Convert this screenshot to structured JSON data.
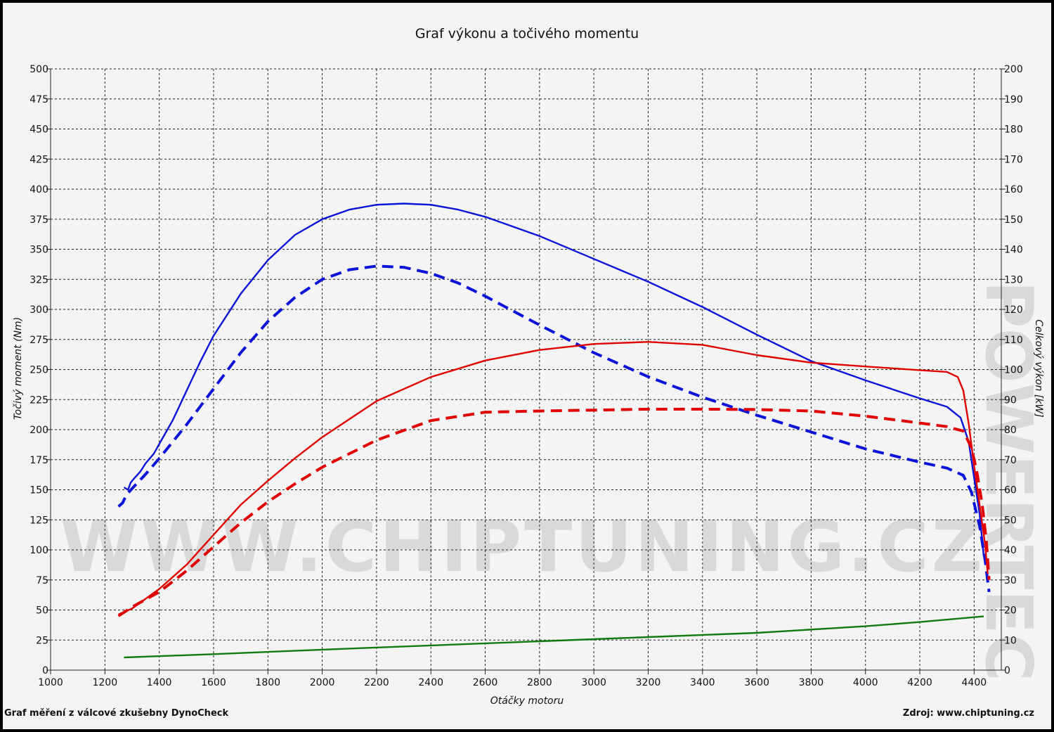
{
  "colors": {
    "background": "#f4f4f4",
    "grid": "#222222",
    "blue": "#0a14d8",
    "red": "#e00000",
    "green": "#117a11"
  },
  "watermark": {
    "text": "WWW.CHIPTUNING.CZ",
    "side_text": "POWERTEC"
  },
  "footer": {
    "left": "Graf měření z válcové zkušebny DynoCheck",
    "right": "Zdroj: www.chiptuning.cz"
  },
  "chart_data": {
    "type": "line",
    "title": "Graf výkonu a točivého momentu",
    "xlabel": "Otáčky motoru",
    "ylabel": "Točivý moment (Nm)",
    "y2label": "Celkový výkon [kW]",
    "xlim": [
      1000,
      4500
    ],
    "ylim": [
      0,
      500
    ],
    "y2lim": [
      0,
      200
    ],
    "grid": true,
    "x_ticks": [
      1000,
      1200,
      1400,
      1600,
      1800,
      2000,
      2200,
      2400,
      2600,
      2800,
      3000,
      3200,
      3400,
      3600,
      3800,
      4000,
      4200,
      4400
    ],
    "y_ticks": [
      0,
      25,
      50,
      75,
      100,
      125,
      150,
      175,
      200,
      225,
      250,
      275,
      300,
      325,
      350,
      375,
      400,
      425,
      450,
      475,
      500
    ],
    "y2_ticks": [
      0,
      10,
      20,
      30,
      40,
      50,
      60,
      70,
      80,
      90,
      100,
      110,
      120,
      130,
      140,
      150,
      160,
      170,
      180,
      190,
      200
    ],
    "series": [
      {
        "color": "#0a14d8",
        "dashed": false,
        "axis": "left",
        "points": [
          [
            1270,
            152
          ],
          [
            1285,
            150
          ],
          [
            1295,
            156
          ],
          [
            1310,
            160
          ],
          [
            1330,
            165
          ],
          [
            1350,
            172
          ],
          [
            1380,
            180
          ],
          [
            1400,
            188
          ],
          [
            1450,
            208
          ],
          [
            1500,
            232
          ],
          [
            1550,
            256
          ],
          [
            1600,
            278
          ],
          [
            1700,
            313
          ],
          [
            1800,
            341
          ],
          [
            1900,
            362
          ],
          [
            2000,
            375
          ],
          [
            2100,
            383
          ],
          [
            2200,
            387
          ],
          [
            2300,
            388
          ],
          [
            2400,
            387
          ],
          [
            2500,
            383
          ],
          [
            2600,
            377
          ],
          [
            2800,
            361
          ],
          [
            3000,
            342
          ],
          [
            3200,
            323
          ],
          [
            3400,
            302
          ],
          [
            3600,
            279
          ],
          [
            3800,
            257
          ],
          [
            4000,
            241
          ],
          [
            4200,
            226
          ],
          [
            4300,
            219
          ],
          [
            4350,
            210
          ],
          [
            4380,
            190
          ],
          [
            4400,
            160
          ],
          [
            4420,
            130
          ],
          [
            4435,
            95
          ]
        ]
      },
      {
        "color": "#0a14d8",
        "dashed": true,
        "axis": "left",
        "points": [
          [
            1250,
            136
          ],
          [
            1265,
            139
          ],
          [
            1280,
            146
          ],
          [
            1300,
            151
          ],
          [
            1350,
            163
          ],
          [
            1400,
            176
          ],
          [
            1500,
            204
          ],
          [
            1600,
            234
          ],
          [
            1700,
            264
          ],
          [
            1800,
            290
          ],
          [
            1900,
            310
          ],
          [
            2000,
            325
          ],
          [
            2100,
            333
          ],
          [
            2200,
            336
          ],
          [
            2300,
            335
          ],
          [
            2400,
            330
          ],
          [
            2500,
            322
          ],
          [
            2600,
            311
          ],
          [
            2800,
            287
          ],
          [
            3000,
            264
          ],
          [
            3200,
            244
          ],
          [
            3400,
            227
          ],
          [
            3600,
            212
          ],
          [
            3800,
            198
          ],
          [
            4000,
            184
          ],
          [
            4200,
            173
          ],
          [
            4300,
            168
          ],
          [
            4360,
            162
          ],
          [
            4390,
            148
          ],
          [
            4420,
            120
          ],
          [
            4440,
            92
          ],
          [
            4455,
            65
          ]
        ]
      },
      {
        "color": "#e00000",
        "dashed": false,
        "axis": "right",
        "points": [
          [
            1250,
            18.5
          ],
          [
            1300,
            20.5
          ],
          [
            1400,
            27
          ],
          [
            1500,
            35
          ],
          [
            1600,
            45
          ],
          [
            1700,
            55
          ],
          [
            1800,
            63
          ],
          [
            1900,
            70.5
          ],
          [
            2000,
            77.5
          ],
          [
            2200,
            89.5
          ],
          [
            2400,
            97.5
          ],
          [
            2600,
            103
          ],
          [
            2800,
            106.5
          ],
          [
            3000,
            108.5
          ],
          [
            3200,
            109.2
          ],
          [
            3400,
            108.2
          ],
          [
            3600,
            104.8
          ],
          [
            3800,
            102.3
          ],
          [
            4000,
            101
          ],
          [
            4200,
            99.8
          ],
          [
            4300,
            99.2
          ],
          [
            4340,
            97.5
          ],
          [
            4360,
            93
          ],
          [
            4380,
            82
          ],
          [
            4400,
            68
          ],
          [
            4420,
            55
          ],
          [
            4440,
            42
          ],
          [
            4450,
            32
          ]
        ]
      },
      {
        "color": "#e00000",
        "dashed": true,
        "axis": "right",
        "points": [
          [
            1250,
            18
          ],
          [
            1300,
            21
          ],
          [
            1400,
            26
          ],
          [
            1500,
            33
          ],
          [
            1600,
            41
          ],
          [
            1700,
            49
          ],
          [
            1800,
            56
          ],
          [
            1900,
            62
          ],
          [
            2000,
            67.5
          ],
          [
            2100,
            72
          ],
          [
            2200,
            76.5
          ],
          [
            2400,
            83
          ],
          [
            2600,
            85.8
          ],
          [
            2800,
            86.2
          ],
          [
            3000,
            86.5
          ],
          [
            3200,
            86.8
          ],
          [
            3400,
            86.8
          ],
          [
            3600,
            86.7
          ],
          [
            3800,
            86.2
          ],
          [
            4000,
            84.5
          ],
          [
            4200,
            82.2
          ],
          [
            4300,
            81
          ],
          [
            4360,
            79.5
          ],
          [
            4390,
            74
          ],
          [
            4410,
            66
          ],
          [
            4430,
            55
          ],
          [
            4445,
            43
          ],
          [
            4455,
            30
          ]
        ]
      },
      {
        "color": "#117a11",
        "dashed": false,
        "axis": "right",
        "points": [
          [
            1270,
            4.2
          ],
          [
            1600,
            5.3
          ],
          [
            2000,
            6.8
          ],
          [
            2400,
            8.2
          ],
          [
            2800,
            9.6
          ],
          [
            3200,
            11
          ],
          [
            3600,
            12.4
          ],
          [
            4000,
            14.6
          ],
          [
            4200,
            16
          ],
          [
            4435,
            17.9
          ]
        ]
      }
    ]
  }
}
